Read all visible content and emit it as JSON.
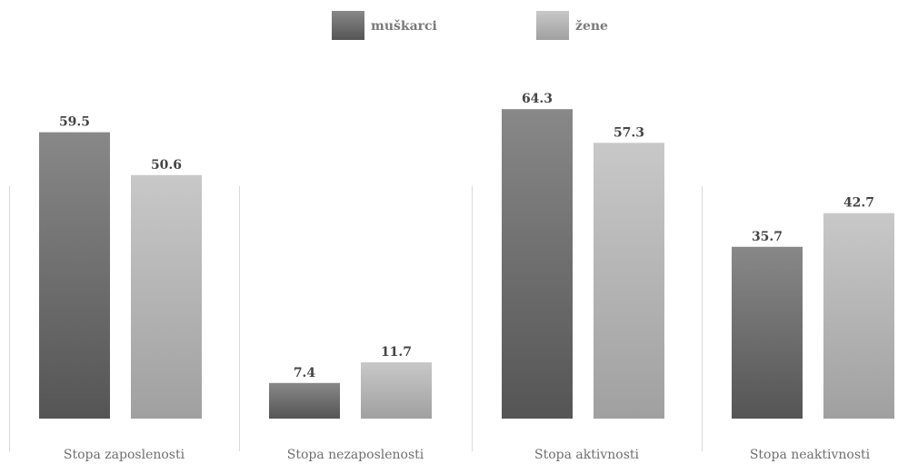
{
  "chart_data": {
    "type": "bar",
    "categories": [
      "Stopa zaposlenosti",
      "Stopa nezaposlenosti",
      "Stopa aktivnosti",
      "Stopa neaktivnosti"
    ],
    "series": [
      {
        "name": "muškarci",
        "values": [
          59.5,
          7.4,
          64.3,
          35.7
        ],
        "color_top": "#888888",
        "color_bottom": "#555555"
      },
      {
        "name": "žene",
        "values": [
          50.6,
          11.7,
          57.3,
          42.7
        ],
        "color_top": "#c8c8c8",
        "color_bottom": "#a0a0a0"
      }
    ],
    "ylim": [
      0,
      70
    ],
    "grid": false,
    "legend_position": "top-center"
  }
}
